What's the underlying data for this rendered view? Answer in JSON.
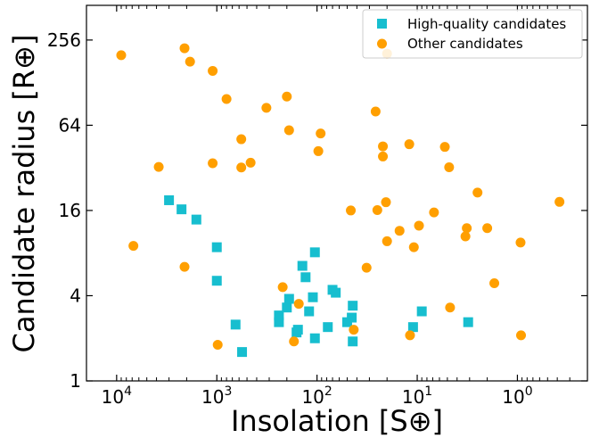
{
  "chart_data": {
    "type": "scatter",
    "xlabel": "Insolation [S⊕]",
    "ylabel": "Candidate radius [R⊕]",
    "x_scale": "log",
    "y_scale": "log2",
    "x_axis_inverted": true,
    "xlim": [
      20000,
      0.2
    ],
    "ylim": [
      1,
      450
    ],
    "x_ticks": [
      {
        "value": 10000,
        "base": "10",
        "exp": "4"
      },
      {
        "value": 1000,
        "base": "10",
        "exp": "3"
      },
      {
        "value": 100,
        "base": "10",
        "exp": "2"
      },
      {
        "value": 10,
        "base": "10",
        "exp": "1"
      },
      {
        "value": 1,
        "base": "10",
        "exp": "0"
      }
    ],
    "y_ticks": [
      {
        "value": 1,
        "label": "1"
      },
      {
        "value": 4,
        "label": "4"
      },
      {
        "value": 16,
        "label": "16"
      },
      {
        "value": 64,
        "label": "64"
      },
      {
        "value": 256,
        "label": "256"
      }
    ],
    "legend_position": "top-right",
    "series": [
      {
        "name": "High-quality candidates",
        "marker": "square",
        "color": "#17becf",
        "points": [
          {
            "x": 3000,
            "y": 18.9
          },
          {
            "x": 2250,
            "y": 16.3
          },
          {
            "x": 1600,
            "y": 13.8
          },
          {
            "x": 1000,
            "y": 8.8
          },
          {
            "x": 1000,
            "y": 5.1
          },
          {
            "x": 650,
            "y": 2.5
          },
          {
            "x": 560,
            "y": 1.6
          },
          {
            "x": 240,
            "y": 2.6
          },
          {
            "x": 240,
            "y": 2.9
          },
          {
            "x": 200,
            "y": 3.3
          },
          {
            "x": 190,
            "y": 3.8
          },
          {
            "x": 160,
            "y": 2.2
          },
          {
            "x": 155,
            "y": 2.3
          },
          {
            "x": 140,
            "y": 6.5
          },
          {
            "x": 130,
            "y": 5.4
          },
          {
            "x": 120,
            "y": 3.1
          },
          {
            "x": 110,
            "y": 3.9
          },
          {
            "x": 105,
            "y": 8.1
          },
          {
            "x": 105,
            "y": 2.0
          },
          {
            "x": 78,
            "y": 2.4
          },
          {
            "x": 70,
            "y": 4.4
          },
          {
            "x": 65,
            "y": 4.2
          },
          {
            "x": 50,
            "y": 2.6
          },
          {
            "x": 45,
            "y": 2.8
          },
          {
            "x": 44,
            "y": 3.4
          },
          {
            "x": 44,
            "y": 1.9
          },
          {
            "x": 11,
            "y": 2.4
          },
          {
            "x": 9,
            "y": 3.1
          },
          {
            "x": 3.1,
            "y": 2.6
          }
        ]
      },
      {
        "name": "Other candidates",
        "marker": "circle",
        "color": "#ff9f00",
        "points": [
          {
            "x": 9000,
            "y": 200
          },
          {
            "x": 6800,
            "y": 9.0
          },
          {
            "x": 3800,
            "y": 32.5
          },
          {
            "x": 2100,
            "y": 224
          },
          {
            "x": 1850,
            "y": 180
          },
          {
            "x": 2100,
            "y": 6.4
          },
          {
            "x": 1100,
            "y": 155
          },
          {
            "x": 1100,
            "y": 34.5
          },
          {
            "x": 980,
            "y": 1.8
          },
          {
            "x": 800,
            "y": 98
          },
          {
            "x": 570,
            "y": 51
          },
          {
            "x": 570,
            "y": 32.2
          },
          {
            "x": 460,
            "y": 34.8
          },
          {
            "x": 320,
            "y": 85
          },
          {
            "x": 220,
            "y": 4.6
          },
          {
            "x": 200,
            "y": 102
          },
          {
            "x": 190,
            "y": 59
          },
          {
            "x": 170,
            "y": 1.9
          },
          {
            "x": 152,
            "y": 3.5
          },
          {
            "x": 97,
            "y": 42
          },
          {
            "x": 92,
            "y": 56
          },
          {
            "x": 46,
            "y": 16.0
          },
          {
            "x": 43,
            "y": 2.3
          },
          {
            "x": 32,
            "y": 6.3
          },
          {
            "x": 20,
            "y": 205
          },
          {
            "x": 26,
            "y": 80
          },
          {
            "x": 25,
            "y": 16.1
          },
          {
            "x": 22,
            "y": 45.4
          },
          {
            "x": 22,
            "y": 38.5
          },
          {
            "x": 20.5,
            "y": 18.3
          },
          {
            "x": 20,
            "y": 9.7
          },
          {
            "x": 15,
            "y": 11.5
          },
          {
            "x": 11.8,
            "y": 2.1
          },
          {
            "x": 10.8,
            "y": 8.8
          },
          {
            "x": 9.6,
            "y": 12.5
          },
          {
            "x": 12,
            "y": 47
          },
          {
            "x": 6.8,
            "y": 15.5
          },
          {
            "x": 5.3,
            "y": 45
          },
          {
            "x": 4.8,
            "y": 32.3
          },
          {
            "x": 4.7,
            "y": 3.3
          },
          {
            "x": 3.3,
            "y": 10.5
          },
          {
            "x": 3.2,
            "y": 12.0
          },
          {
            "x": 2.5,
            "y": 21.4
          },
          {
            "x": 2.0,
            "y": 12.0
          },
          {
            "x": 1.7,
            "y": 4.9
          },
          {
            "x": 0.93,
            "y": 9.5
          },
          {
            "x": 0.92,
            "y": 2.1
          },
          {
            "x": 0.38,
            "y": 18.4
          }
        ]
      }
    ]
  }
}
